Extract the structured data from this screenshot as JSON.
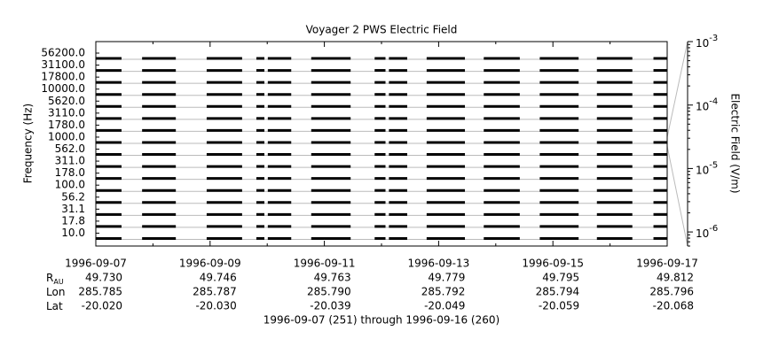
{
  "chart_data": {
    "type": "channel-coverage",
    "title": "Voyager 2 PWS Electric Field",
    "ylabel": "Frequency (Hz)",
    "y2label": "Electric Field (V/m)",
    "footer": "1996-09-07 (251) through 1996-09-16 (260)",
    "channels": [
      {
        "value": 56200,
        "label": "56200.0"
      },
      {
        "value": 31100,
        "label": "31100.0"
      },
      {
        "value": 17800,
        "label": "17800.0"
      },
      {
        "value": 10000,
        "label": "10000.0"
      },
      {
        "value": 5620,
        "label": "5620.0"
      },
      {
        "value": 3110,
        "label": "3110.0"
      },
      {
        "value": 1780,
        "label": "1780.0"
      },
      {
        "value": 1000,
        "label": "1000.0"
      },
      {
        "value": 562,
        "label": "562.0"
      },
      {
        "value": 311,
        "label": "311.0"
      },
      {
        "value": 178,
        "label": "178.0"
      },
      {
        "value": 100,
        "label": "100.0"
      },
      {
        "value": 56.2,
        "label": "56.2"
      },
      {
        "value": 31.1,
        "label": "31.1"
      },
      {
        "value": 17.8,
        "label": "17.8"
      },
      {
        "value": 10,
        "label": "10.0"
      }
    ],
    "coverage": [
      [
        251,
        251.45
      ],
      [
        251.81,
        252.4
      ],
      [
        252.94,
        253.56
      ],
      [
        253.81,
        253.95
      ],
      [
        254.01,
        254.42
      ],
      [
        254.77,
        255.46
      ],
      [
        255.88,
        256.07
      ],
      [
        256.13,
        256.45
      ],
      [
        256.79,
        257.46
      ],
      [
        257.79,
        258.42
      ],
      [
        258.77,
        259.45
      ],
      [
        259.77,
        260.39
      ],
      [
        260.76,
        261
      ]
    ],
    "xlim": [
      251,
      261
    ],
    "xticks": [
      {
        "value": 251,
        "label": "1996-09-07"
      },
      {
        "value": 253,
        "label": "1996-09-09"
      },
      {
        "value": 255,
        "label": "1996-09-11"
      },
      {
        "value": 257,
        "label": "1996-09-13"
      },
      {
        "value": 259,
        "label": "1996-09-15"
      },
      {
        "value": 261,
        "label": "1996-09-17"
      }
    ],
    "xminorticks": [
      252,
      254,
      256,
      258,
      260
    ],
    "y2lim": [
      6e-07,
      0.001
    ],
    "y2ticks": [
      {
        "value": 0.001,
        "label": "10",
        "exponent": "-3"
      },
      {
        "value": 0.0001,
        "label": "10",
        "exponent": "-4"
      },
      {
        "value": 1e-05,
        "label": "10",
        "exponent": "-5"
      },
      {
        "value": 1e-06,
        "label": "10",
        "exponent": "-6"
      }
    ],
    "y2log": true,
    "color": "#000000",
    "grid_color": "#bbbbbb",
    "ephemeris": [
      {
        "label": "R",
        "sub": "AU",
        "values": [
          "49.730",
          "49.746",
          "49.763",
          "49.779",
          "49.795",
          "49.812"
        ]
      },
      {
        "label": "Lon",
        "values": [
          "285.785",
          "285.787",
          "285.790",
          "285.792",
          "285.794",
          "285.796"
        ]
      },
      {
        "label": "Lat",
        "values": [
          "-20.020",
          "-20.030",
          "-20.039",
          "-20.049",
          "-20.059",
          "-20.068"
        ]
      }
    ]
  }
}
